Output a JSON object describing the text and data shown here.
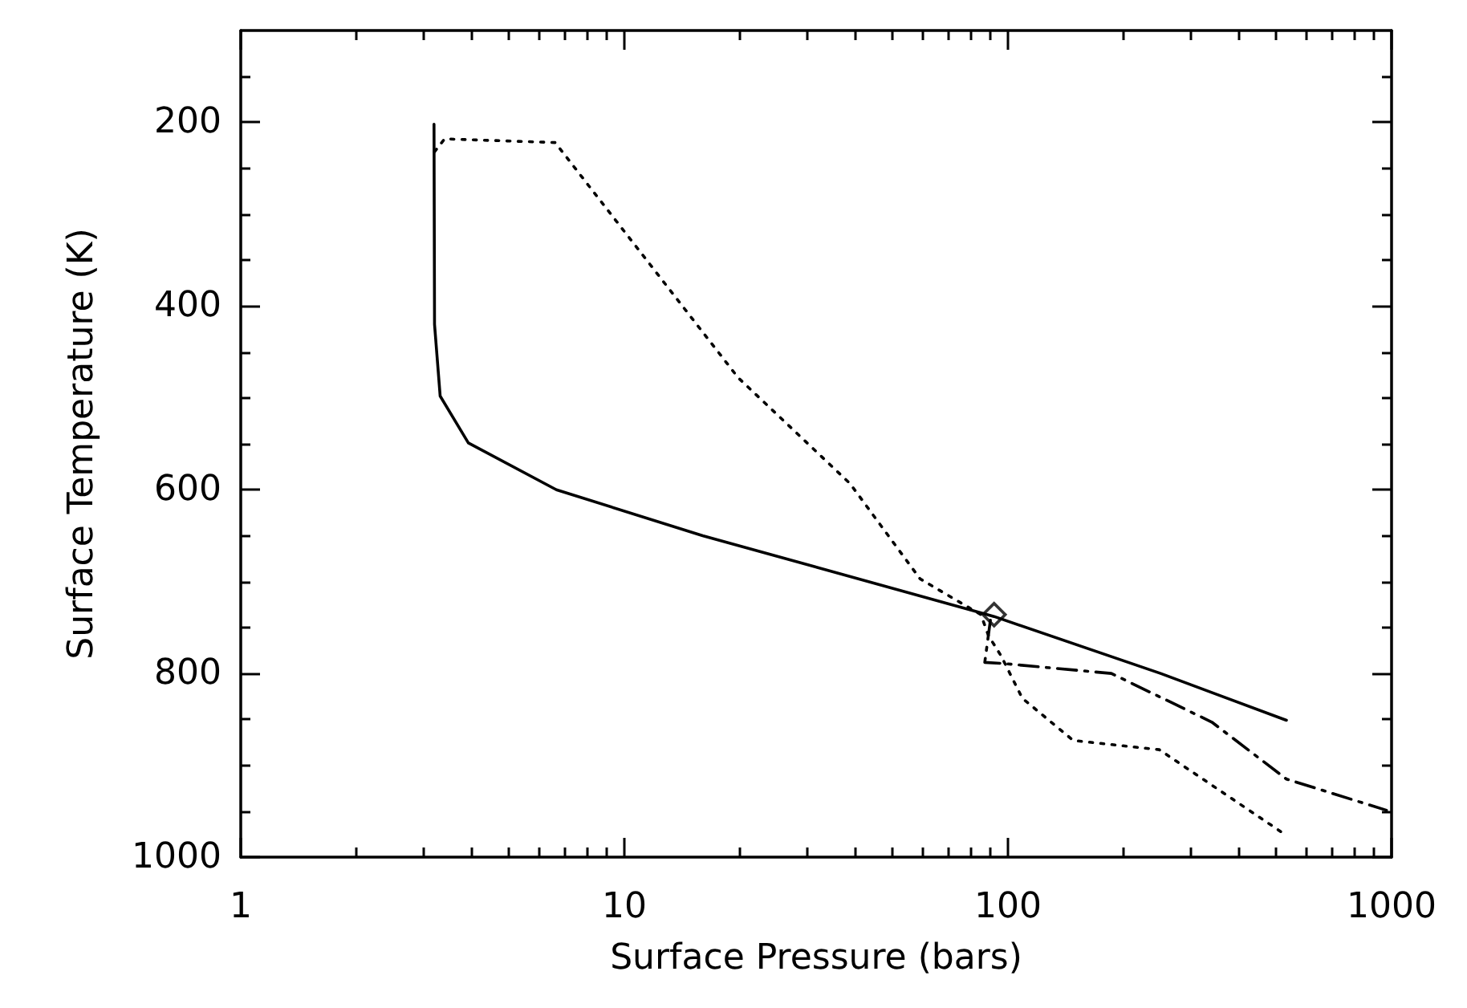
{
  "chart_data": {
    "type": "line",
    "xlabel": "Surface Pressure (bars)",
    "ylabel": "Surface Temperature (K)",
    "log": "x",
    "xlim": [
      1,
      1000
    ],
    "xticks": [
      1,
      {
        "value": 2,
        "label": null
      },
      {
        "value": 3,
        "label": null
      },
      {
        "value": 4,
        "label": null
      },
      {
        "value": 5,
        "label": null
      },
      {
        "value": 6,
        "label": null
      },
      {
        "value": 7,
        "label": null
      },
      {
        "value": 8,
        "label": null
      },
      {
        "value": 9,
        "label": null
      },
      10,
      {
        "value": 20,
        "label": null
      },
      {
        "value": 30,
        "label": null
      },
      {
        "value": 40,
        "label": null
      },
      {
        "value": 50,
        "label": null
      },
      {
        "value": 60,
        "label": null
      },
      {
        "value": 70,
        "label": null
      },
      {
        "value": 80,
        "label": null
      },
      {
        "value": 90,
        "label": null
      },
      100,
      {
        "value": 200,
        "label": null
      },
      {
        "value": 300,
        "label": null
      },
      {
        "value": 400,
        "label": null
      },
      {
        "value": 500,
        "label": null
      },
      {
        "value": 600,
        "label": null
      },
      {
        "value": 700,
        "label": null
      },
      {
        "value": 800,
        "label": null
      },
      {
        "value": 900,
        "label": null
      },
      1000
    ],
    "ylim": [
      1000,
      100
    ],
    "yticks": [
      {
        "value": 150,
        "label": null
      },
      200,
      {
        "value": 250,
        "label": null
      },
      {
        "value": 300,
        "label": null
      },
      {
        "value": 350,
        "label": null
      },
      400,
      {
        "value": 450,
        "label": null
      },
      {
        "value": 500,
        "label": null
      },
      {
        "value": 550,
        "label": null
      },
      600,
      {
        "value": 650,
        "label": null
      },
      {
        "value": 700,
        "label": null
      },
      {
        "value": 750,
        "label": null
      },
      800,
      {
        "value": 850,
        "label": null
      },
      {
        "value": 900,
        "label": null
      },
      {
        "value": 950,
        "label": null
      },
      1000
    ],
    "grid": false,
    "marker": "none",
    "series": [
      {
        "color": "#000000",
        "line_style": "solid",
        "x": [
          3.19,
          3.2,
          3.31,
          3.92,
          6.65,
          16,
          92,
          250,
          532
        ],
        "values": [
          202,
          420,
          498,
          549,
          600,
          650,
          738,
          800,
          851
        ]
      },
      {
        "color": "#000000",
        "line_style": "dotted",
        "x": [
          3.2,
          3.4,
          6.6,
          19.8,
          38.7,
          59,
          85,
          89,
          96,
          109,
          148,
          248,
          526
        ],
        "values": [
          232,
          218,
          222,
          478,
          593,
          697,
          736,
          759,
          781,
          827,
          873,
          883,
          975
        ]
      },
      {
        "color": "#000000",
        "line_style": "dashed",
        "x": [
          90,
          87,
          96,
          186,
          340,
          532,
          970
        ],
        "values": [
          742,
          788,
          789,
          800,
          853,
          915,
          949
        ]
      },
      {
        "type": "scatter",
        "color": "#000000",
        "marker": "diamond",
        "x": [
          92
        ],
        "values": [
          736
        ]
      }
    ]
  }
}
